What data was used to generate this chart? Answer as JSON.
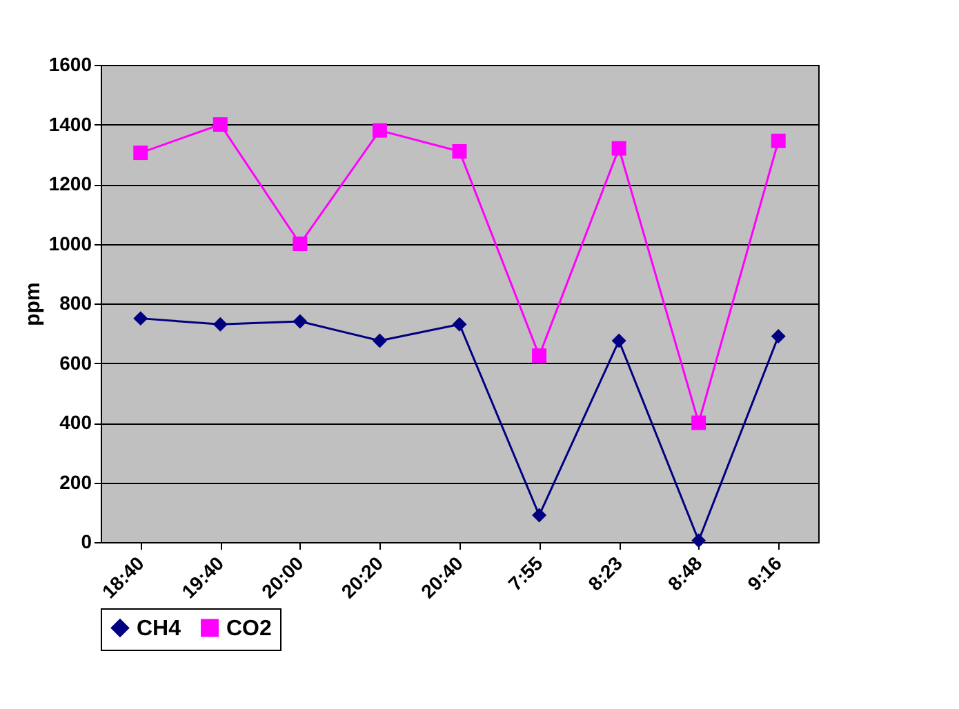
{
  "chart_data": {
    "type": "line",
    "ylabel": "ppm",
    "categories": [
      "18:40",
      "19:40",
      "20:00",
      "20:20",
      "20:40",
      "7:55",
      "8:23",
      "8:48",
      "9:16"
    ],
    "series": [
      {
        "name": "CH4",
        "color": "#000080",
        "marker": "diamond",
        "values": [
          750,
          730,
          740,
          675,
          730,
          90,
          675,
          5,
          690
        ]
      },
      {
        "name": "CO2",
        "color": "#ff00ff",
        "marker": "square",
        "values": [
          1305,
          1400,
          1000,
          1380,
          1310,
          625,
          1320,
          400,
          1345
        ]
      }
    ],
    "ylim": [
      0,
      1600
    ],
    "yticks": [
      0,
      200,
      400,
      600,
      800,
      1000,
      1200,
      1400,
      1600
    ],
    "grid": "y",
    "legend": "bottom"
  }
}
